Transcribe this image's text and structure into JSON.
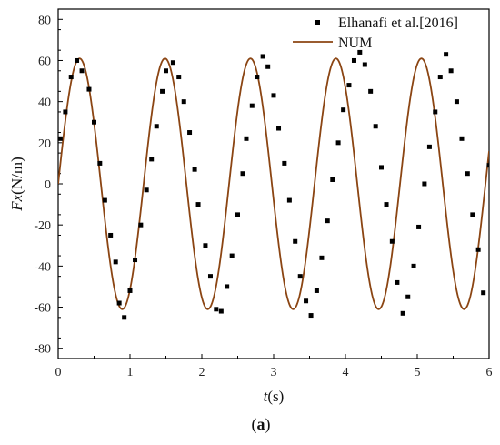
{
  "chart_data": {
    "type": "line",
    "xlabel_italic": "t",
    "xlabel_unit": "(s)",
    "ylabel_italic": "Fx",
    "ylabel_unit": "(N/m)",
    "xlim": [
      0,
      6
    ],
    "ylim": [
      -85,
      85
    ],
    "x_ticks": [
      0,
      1,
      2,
      3,
      4,
      5,
      6
    ],
    "y_ticks": [
      -80,
      -60,
      -40,
      -20,
      0,
      20,
      40,
      60,
      80
    ],
    "x_tick_labels": [
      "0",
      "1",
      "2",
      "3",
      "4",
      "5",
      "6"
    ],
    "y_tick_labels": [
      "-80",
      "-60",
      "-40",
      "-20",
      "0",
      "20",
      "40",
      "60",
      "80"
    ],
    "grid": false,
    "legend_position": "top-right",
    "panel_label": "a",
    "series": [
      {
        "name": "Elhanafi et al.[2016]",
        "kind": "scatter",
        "color": "#000000",
        "x": [
          0.03,
          0.1,
          0.18,
          0.26,
          0.33,
          0.43,
          0.5,
          0.58,
          0.65,
          0.73,
          0.8,
          0.85,
          0.92,
          1.0,
          1.07,
          1.15,
          1.23,
          1.3,
          1.37,
          1.45,
          1.5,
          1.6,
          1.68,
          1.75,
          1.83,
          1.9,
          1.95,
          2.05,
          2.12,
          2.2,
          2.27,
          2.35,
          2.42,
          2.5,
          2.57,
          2.62,
          2.7,
          2.77,
          2.85,
          2.92,
          3.0,
          3.07,
          3.15,
          3.22,
          3.3,
          3.37,
          3.45,
          3.52,
          3.6,
          3.67,
          3.75,
          3.82,
          3.9,
          3.97,
          4.05,
          4.12,
          4.2,
          4.27,
          4.35,
          4.42,
          4.5,
          4.57,
          4.65,
          4.72,
          4.8,
          4.87,
          4.95,
          5.02,
          5.1,
          5.17,
          5.25,
          5.32,
          5.4,
          5.47,
          5.55,
          5.62,
          5.7,
          5.77,
          5.85,
          5.92,
          6.0
        ],
        "y": [
          22,
          35,
          52,
          60,
          55,
          46,
          30,
          10,
          -8,
          -25,
          -38,
          -58,
          -65,
          -52,
          -37,
          -20,
          -3,
          12,
          28,
          45,
          55,
          59,
          52,
          40,
          25,
          7,
          -10,
          -30,
          -45,
          -61,
          -62,
          -50,
          -35,
          -15,
          5,
          22,
          38,
          52,
          62,
          57,
          43,
          27,
          10,
          -8,
          -28,
          -45,
          -57,
          -64,
          -52,
          -36,
          -18,
          2,
          20,
          36,
          48,
          60,
          64,
          58,
          45,
          28,
          8,
          -10,
          -28,
          -48,
          -63,
          -55,
          -40,
          -21,
          0,
          18,
          35,
          52,
          63,
          55,
          40,
          22,
          5,
          -15,
          -32,
          -53,
          9
        ]
      },
      {
        "name": "NUM",
        "kind": "line",
        "color": "#8B4513",
        "model": {
          "amplitude": 61,
          "period": 1.19,
          "phase_start": 0.0
        }
      }
    ]
  }
}
